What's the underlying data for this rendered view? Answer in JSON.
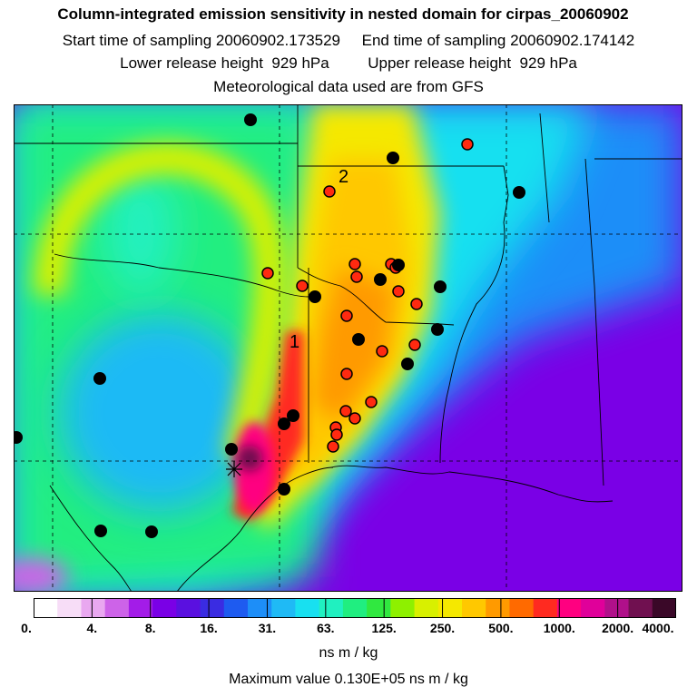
{
  "header": {
    "title": "Column-integrated emission sensitivity in nested domain for cirpas_20060902",
    "start_label": "Start time of sampling",
    "start_value": "20060902.173529",
    "end_label": "End time of sampling",
    "end_value": "20060902.174142",
    "lower_label": "Lower release height",
    "lower_value": "929 hPa",
    "upper_label": "Upper release height",
    "upper_value": "929 hPa",
    "met_line": "Meteorological data used are from GFS"
  },
  "map": {
    "labels": [
      "1",
      "2"
    ],
    "release_marker": "asterisk-icon"
  },
  "legend": {
    "ticks": [
      "0.",
      "4.",
      "8.",
      "16.",
      "31.",
      "63.",
      "125.",
      "250.",
      "500.",
      "1000.",
      "2000.",
      "4000."
    ],
    "colors": [
      "#ffffff",
      "#f7ddf7",
      "#e9a8f0",
      "#cd63e8",
      "#a31ce8",
      "#7a00e6",
      "#5a10e0",
      "#3a2ce2",
      "#1e5bf0",
      "#1d8ef8",
      "#1fbaf5",
      "#18e0f0",
      "#20f0c0",
      "#20ee80",
      "#30e840",
      "#8ef000",
      "#d8f000",
      "#f5e800",
      "#ffc800",
      "#ff9a00",
      "#ff6a00",
      "#ff2a20",
      "#ff0080",
      "#e0009a",
      "#b0108a",
      "#701050",
      "#3a0828"
    ],
    "units": "ns m / kg",
    "max_value": "Maximum value  0.130E+05 ns m / kg"
  }
}
